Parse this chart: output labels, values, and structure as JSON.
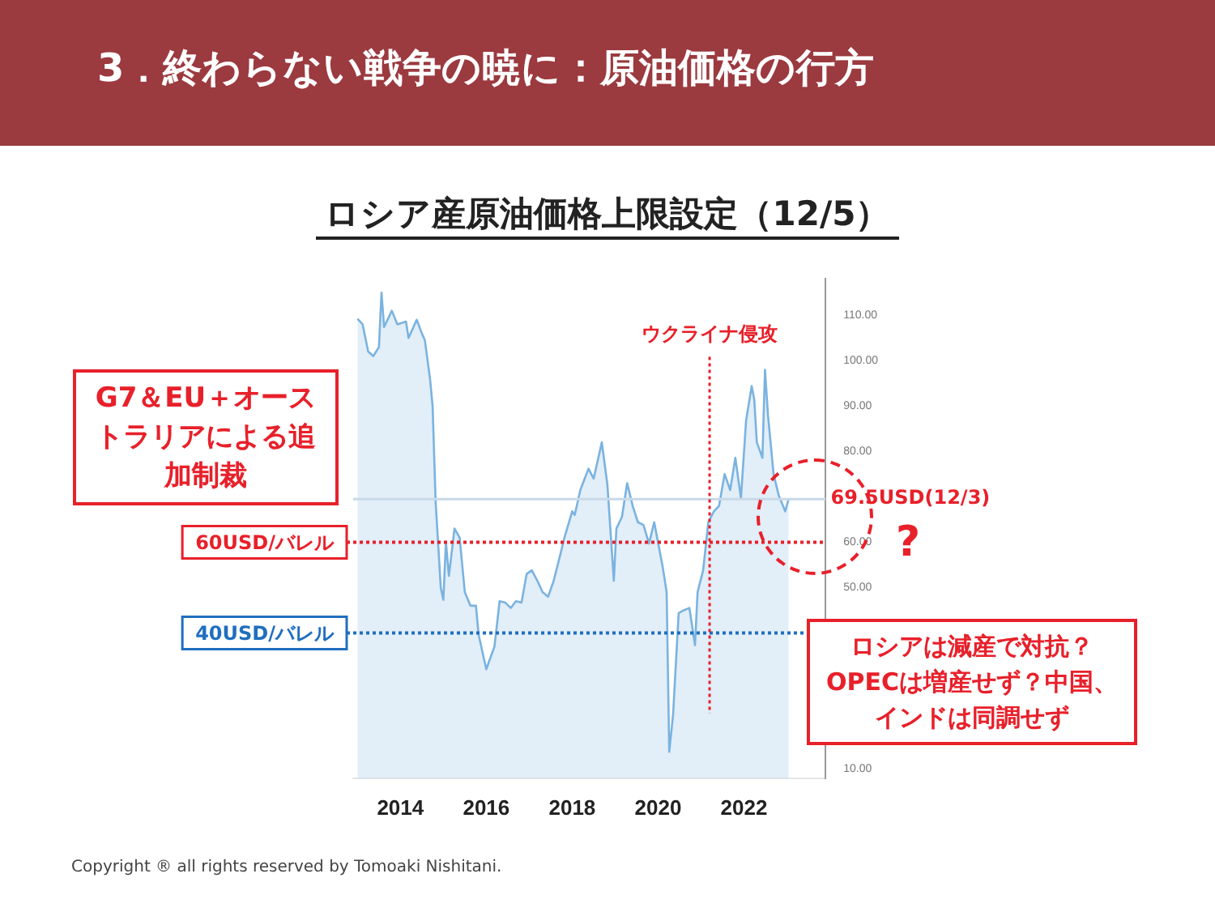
{
  "chart_data": {
    "type": "area",
    "title": "3．終わらない戦争の暁に：原油価格の行方",
    "subtitle": "ロシア産原油価格上限設定（12/5）",
    "color": "#7ab3e0",
    "x": [
      2013.0,
      2013.12,
      2013.25,
      2013.37,
      2013.5,
      2013.56,
      2013.62,
      2013.8,
      2013.93,
      2014.13,
      2014.19,
      2014.38,
      2014.5,
      2014.57,
      2014.69,
      2014.75,
      2014.82,
      2014.94,
      2015.0,
      2015.06,
      2015.13,
      2015.26,
      2015.38,
      2015.5,
      2015.63,
      2015.76,
      2015.82,
      2016.0,
      2016.19,
      2016.31,
      2016.44,
      2016.57,
      2016.69,
      2016.82,
      2016.94,
      2017.06,
      2017.19,
      2017.31,
      2017.44,
      2017.57,
      2017.69,
      2017.82,
      2018.0,
      2018.06,
      2018.19,
      2018.38,
      2018.5,
      2018.69,
      2018.82,
      2018.97,
      2019.03,
      2019.16,
      2019.28,
      2019.41,
      2019.53,
      2019.66,
      2019.79,
      2019.91,
      2020.1,
      2020.2,
      2020.26,
      2020.35,
      2020.48,
      2020.6,
      2020.73,
      2020.86,
      2020.92,
      2021.05,
      2021.17,
      2021.3,
      2021.42,
      2021.55,
      2021.68,
      2021.8,
      2021.93,
      2022.05,
      2022.18,
      2022.24,
      2022.3,
      2022.43,
      2022.49,
      2022.56,
      2022.69,
      2022.81,
      2022.91,
      2022.96,
      2023.04
    ],
    "values": [
      109.2,
      108,
      102,
      101,
      103,
      115,
      107.4,
      111,
      108,
      108.6,
      105,
      109,
      106,
      104.5,
      96,
      90,
      69,
      50,
      47.3,
      60,
      52.6,
      63,
      61,
      49,
      46,
      46,
      39.7,
      32,
      37,
      47,
      46.7,
      45.5,
      47,
      46.7,
      53,
      53.8,
      51.5,
      49,
      48,
      51.5,
      56,
      61,
      66.8,
      66,
      71.5,
      76.2,
      74,
      82,
      72.7,
      51.5,
      63,
      65.6,
      73,
      68,
      64.4,
      63.8,
      59.7,
      64.4,
      55,
      49,
      13.8,
      22,
      44.4,
      45,
      45.5,
      37.3,
      49,
      53.8,
      64.4,
      66.8,
      68,
      75,
      71.5,
      78.6,
      69.7,
      86.8,
      94.4,
      91.5,
      82,
      78.6,
      98,
      88,
      75,
      70.3,
      68,
      66.8,
      69.5
    ],
    "xlim": [
      2012.9,
      2023.9
    ],
    "xticks": [
      2014,
      2016,
      2018,
      2020,
      2022
    ],
    "ylim": [
      8,
      118
    ],
    "yticks": [
      {
        "value": 10,
        "label": "10.00"
      },
      {
        "value": 50,
        "label": "50.00"
      },
      {
        "value": 60,
        "label": "60.00"
      },
      {
        "value": 80,
        "label": "80.00"
      },
      {
        "value": 90,
        "label": "90.00"
      },
      {
        "value": 100,
        "label": "100.00"
      },
      {
        "value": 110,
        "label": "110.00"
      }
    ],
    "grid": false,
    "legend": false,
    "ref_lines": [
      {
        "axis": "y",
        "value": 69.5,
        "color": "#c9d9e8",
        "line_style": "solid"
      },
      {
        "axis": "y",
        "value": 60,
        "label": "60USD/バレル",
        "color": "#e8202a",
        "line_style": "dotted"
      },
      {
        "axis": "y",
        "value": 40,
        "label": "40USD/バレル",
        "color": "#1f6fbf",
        "line_style": "dotted"
      },
      {
        "axis": "x",
        "value": 2021.2,
        "label": "ウクライナ侵攻",
        "color": "#e8202a",
        "line_style": "dotted"
      }
    ],
    "annotations": [
      "G7＆EU＋オーストラリアによる追加制裁",
      {
        "text": "69.5USD(12/3)",
        "x": 2023.04,
        "y": 69.5
      },
      "?",
      "ロシアは減産で対抗？OPECは増産せず？中国、インドは同調せず",
      "Copyright ® all rights reserved by Tomoaki Nishitani."
    ]
  }
}
